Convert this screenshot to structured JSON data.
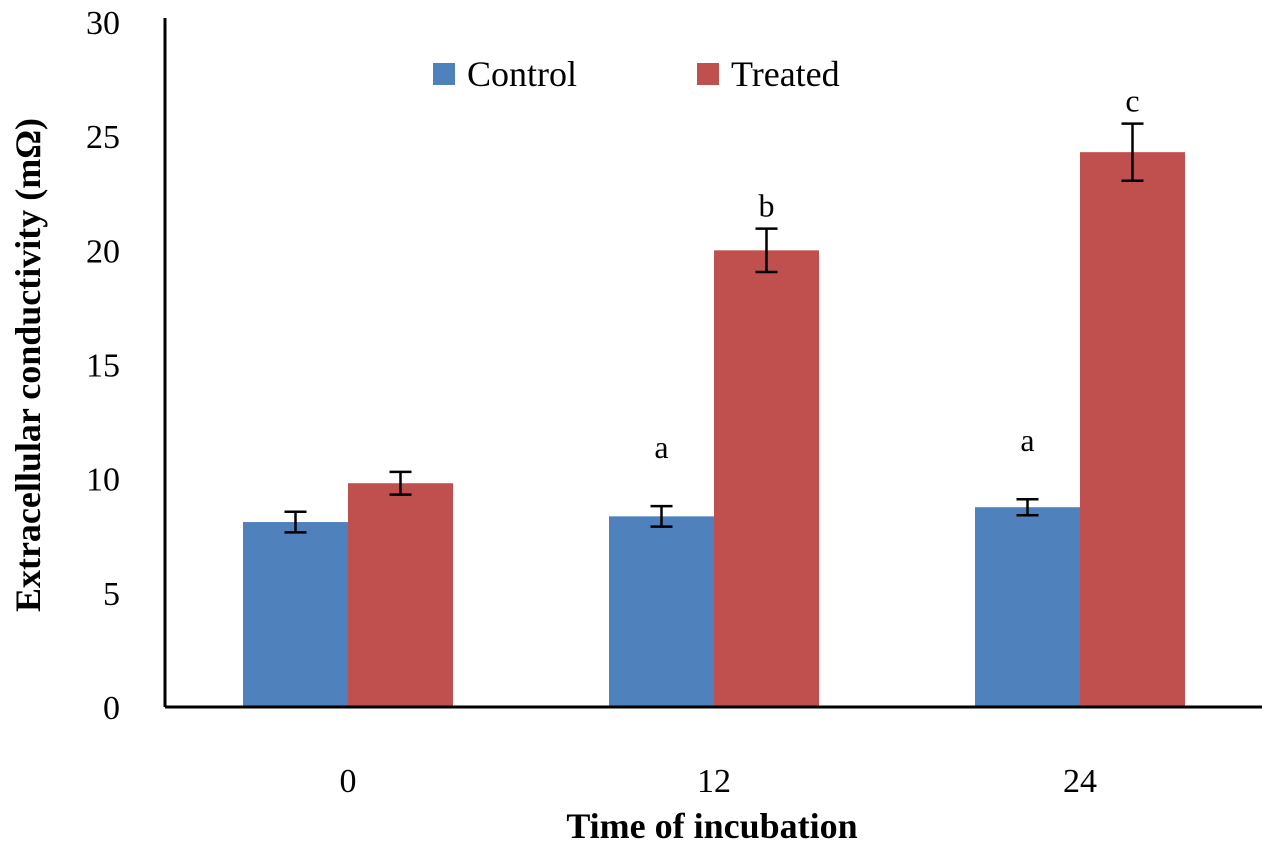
{
  "chart_data": {
    "type": "bar",
    "title": "",
    "xlabel": "Time of incubation",
    "ylabel": "Extracellular conductivity (mΩ)",
    "categories": [
      "0",
      "12",
      "24"
    ],
    "ylim": [
      0,
      30
    ],
    "yticks": [
      0,
      5,
      10,
      15,
      20,
      25,
      30
    ],
    "grid": false,
    "legend_position": "top-center",
    "series": [
      {
        "name": "Control",
        "color": "#4F81BD",
        "values": [
          8.1,
          8.35,
          8.75
        ],
        "errors": [
          0.45,
          0.45,
          0.35
        ],
        "annotations": [
          "",
          "a",
          "a"
        ]
      },
      {
        "name": "Treated",
        "color": "#C0504D",
        "values": [
          9.8,
          20.0,
          24.3
        ],
        "errors": [
          0.5,
          0.95,
          1.25
        ],
        "annotations": [
          "",
          "b",
          "c"
        ]
      }
    ]
  }
}
